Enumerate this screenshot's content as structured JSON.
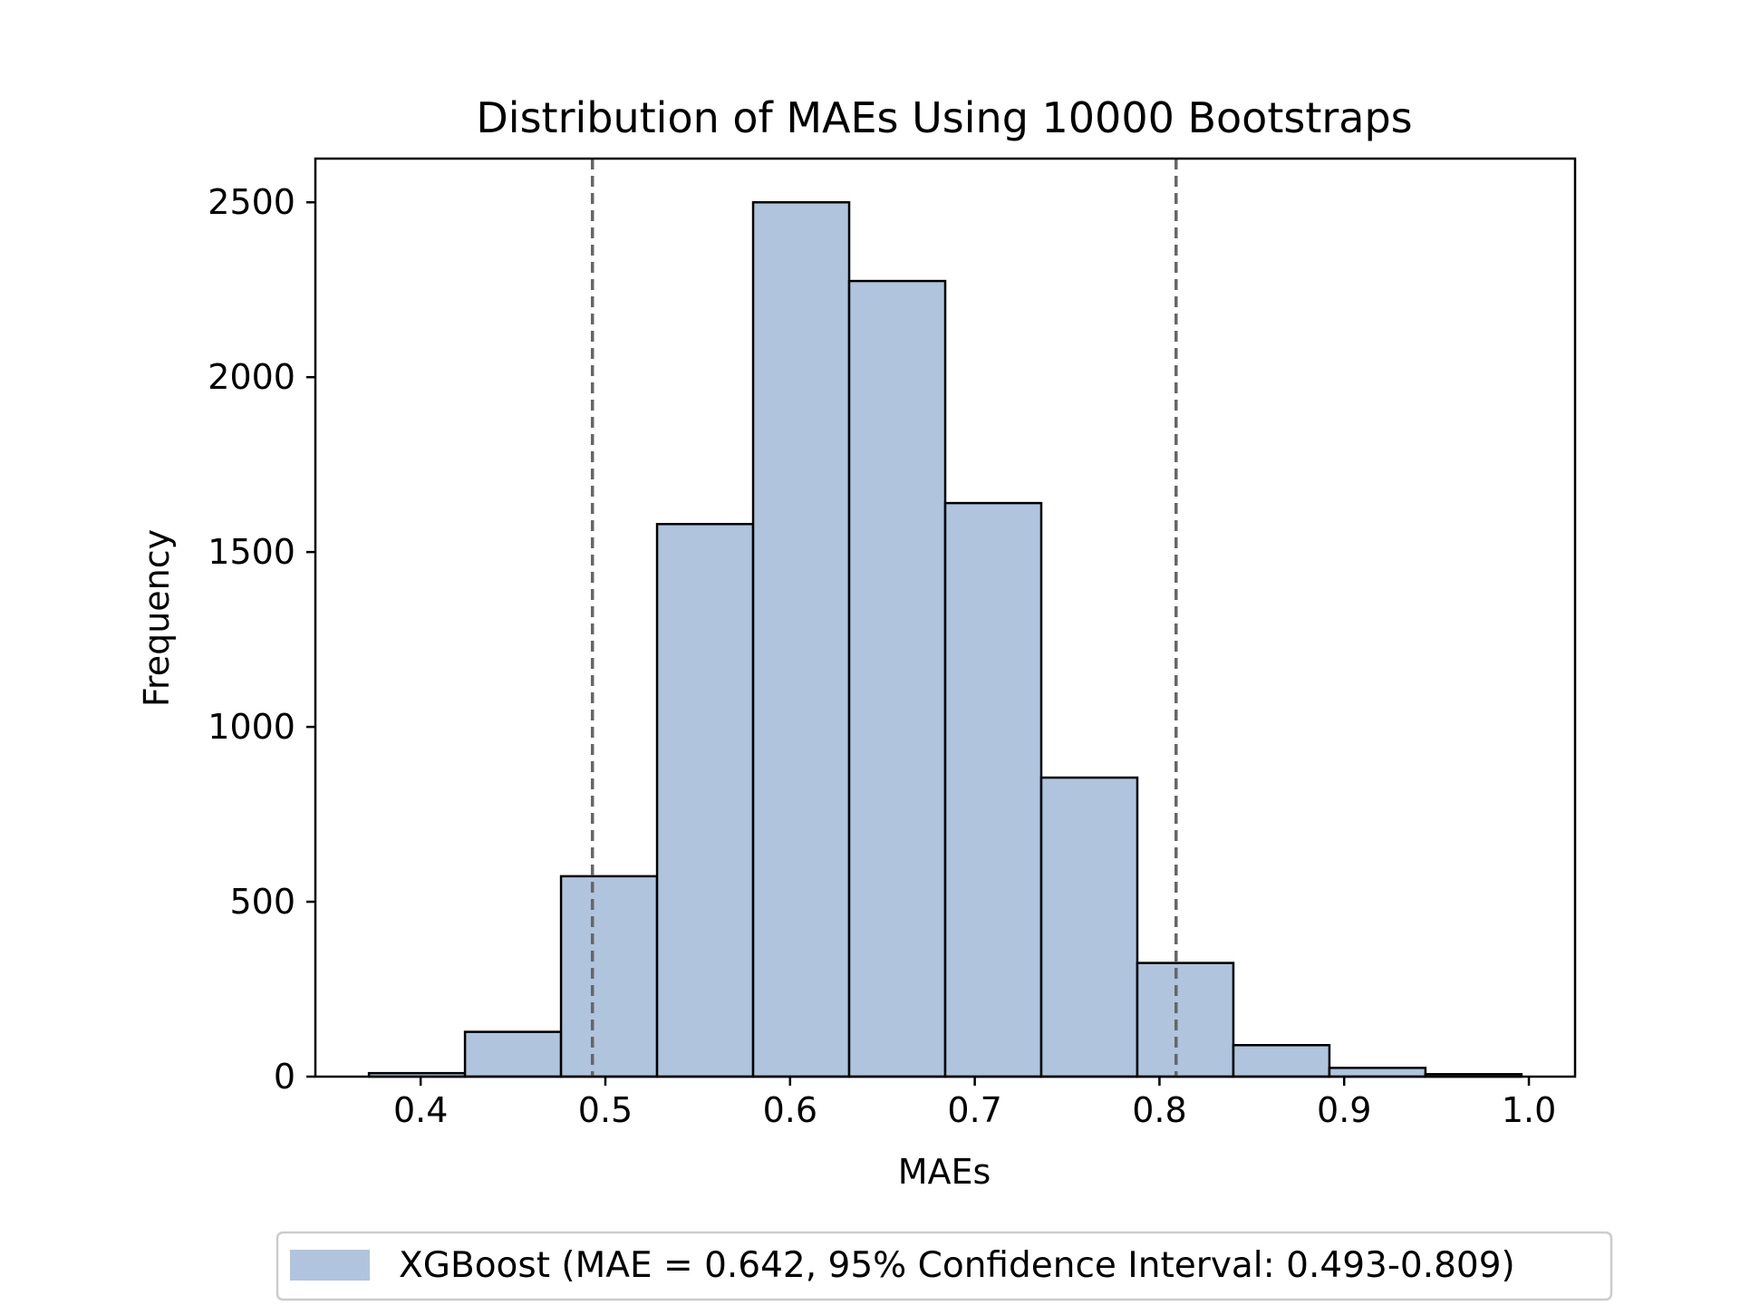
{
  "chart_data": {
    "type": "bar",
    "title": "Distribution of MAEs Using 10000 Bootstraps",
    "xlabel": "MAEs",
    "ylabel": "Frequency",
    "xlim": [
      0.343,
      1.025
    ],
    "ylim": [
      0,
      2625
    ],
    "xticks": [
      0.4,
      0.5,
      0.6,
      0.7,
      0.8,
      0.9,
      1.0
    ],
    "xtick_labels": [
      "0.4",
      "0.5",
      "0.6",
      "0.7",
      "0.8",
      "0.9",
      "1.0"
    ],
    "yticks": [
      0,
      500,
      1000,
      1500,
      2000,
      2500
    ],
    "ytick_labels": [
      "0",
      "500",
      "1000",
      "1500",
      "2000",
      "2500"
    ],
    "bins": [
      {
        "x0": 0.372,
        "x1": 0.424,
        "count": 10
      },
      {
        "x0": 0.424,
        "x1": 0.476,
        "count": 128
      },
      {
        "x0": 0.476,
        "x1": 0.528,
        "count": 573
      },
      {
        "x0": 0.528,
        "x1": 0.58,
        "count": 1580
      },
      {
        "x0": 0.58,
        "x1": 0.632,
        "count": 2500
      },
      {
        "x0": 0.632,
        "x1": 0.684,
        "count": 2275
      },
      {
        "x0": 0.684,
        "x1": 0.736,
        "count": 1640
      },
      {
        "x0": 0.736,
        "x1": 0.788,
        "count": 855
      },
      {
        "x0": 0.788,
        "x1": 0.84,
        "count": 325
      },
      {
        "x0": 0.84,
        "x1": 0.892,
        "count": 90
      },
      {
        "x0": 0.892,
        "x1": 0.944,
        "count": 25
      },
      {
        "x0": 0.944,
        "x1": 0.996,
        "count": 7
      }
    ],
    "ci_lines": [
      0.493,
      0.809
    ],
    "grid": false,
    "legend_placement": "bottom-center",
    "legend": [
      {
        "label": "XGBoost (MAE = 0.642, 95% Confidence Interval: 0.493-0.809)",
        "color": "#b0c4de"
      }
    ],
    "colors": {
      "bar_fill": "#b0c4de",
      "bar_edge": "#000000",
      "ci_line": "#666666"
    }
  }
}
